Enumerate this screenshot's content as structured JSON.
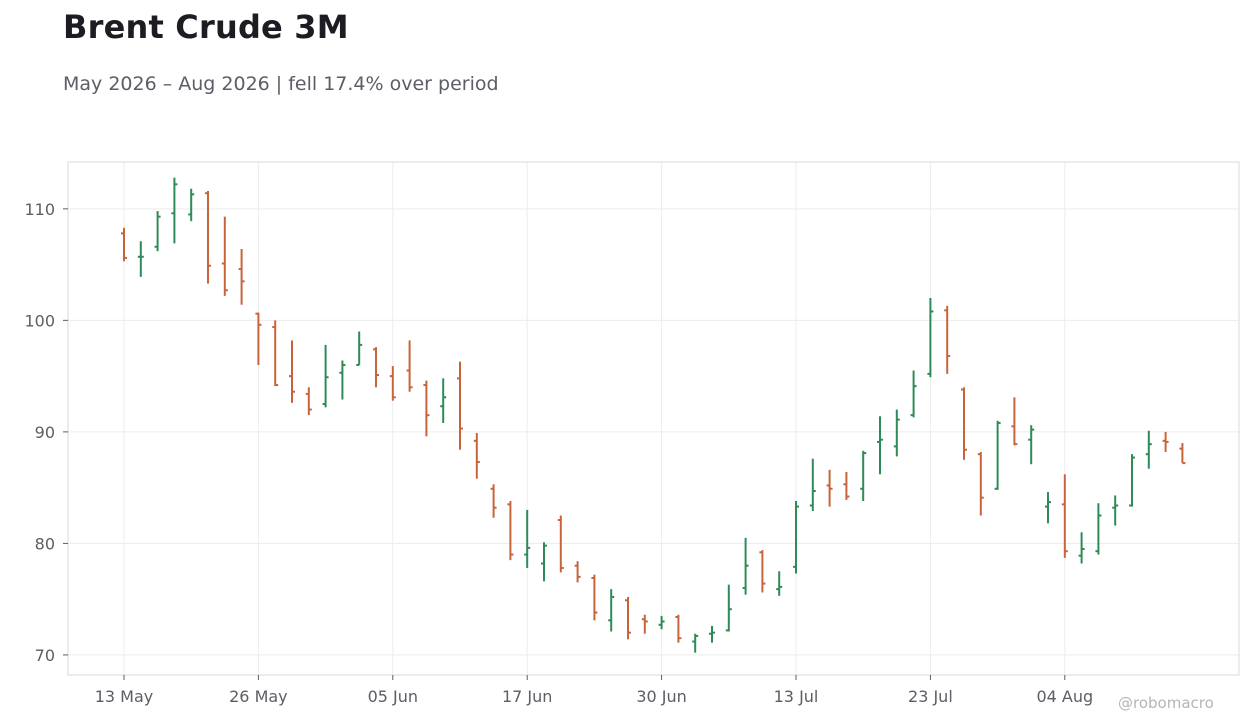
{
  "title": "Brent Crude 3M",
  "subtitle": "May 2026 – Aug 2026 | fell 17.4% over period",
  "watermark": "@robomacro",
  "colors": {
    "up": "#2e8b57",
    "down": "#c8643c",
    "grid": "#ececec",
    "frame": "#d9d9d9",
    "text": "#5d5d66"
  },
  "chart_data": {
    "type": "ohlc",
    "title": "Brent Crude 3M",
    "subtitle": "May 2026 – Aug 2026 | fell 17.4% over period",
    "xlabel": "",
    "ylabel": "",
    "ylim": [
      68.2,
      114.2
    ],
    "yticks": [
      70,
      80,
      90,
      100,
      110
    ],
    "xticks": [
      "13 May",
      "26 May",
      "05 Jun",
      "17 Jun",
      "30 Jun",
      "13 Jul",
      "23 Jul",
      "04 Aug"
    ],
    "grid": true,
    "bars": [
      {
        "date": "13 May",
        "o": 107.8,
        "h": 108.3,
        "l": 105.3,
        "c": 105.6
      },
      {
        "date": "14 May",
        "o": 105.7,
        "h": 107.1,
        "l": 103.9,
        "c": 105.7
      },
      {
        "date": "15 May",
        "o": 106.6,
        "h": 109.8,
        "l": 106.2,
        "c": 109.3
      },
      {
        "date": "16 May",
        "o": 109.6,
        "h": 112.8,
        "l": 106.9,
        "c": 112.2
      },
      {
        "date": "17 May",
        "o": 109.5,
        "h": 111.8,
        "l": 108.9,
        "c": 111.3
      },
      {
        "date": "18 May",
        "o": 111.4,
        "h": 111.6,
        "l": 103.3,
        "c": 104.9
      },
      {
        "date": "19 May",
        "o": 105.1,
        "h": 109.3,
        "l": 102.2,
        "c": 102.7
      },
      {
        "date": "20 May",
        "o": 104.6,
        "h": 106.4,
        "l": 101.4,
        "c": 103.5
      },
      {
        "date": "21 May",
        "o": 100.6,
        "h": 100.7,
        "l": 96.0,
        "c": 99.6
      },
      {
        "date": "22 May",
        "o": 99.4,
        "h": 100.0,
        "l": 94.1,
        "c": 94.2
      },
      {
        "date": "23 May",
        "o": 95.0,
        "h": 98.2,
        "l": 92.6,
        "c": 93.6
      },
      {
        "date": "24 May",
        "o": 93.4,
        "h": 94.0,
        "l": 91.5,
        "c": 92.0
      },
      {
        "date": "25 May",
        "o": 92.5,
        "h": 97.8,
        "l": 92.2,
        "c": 94.9
      },
      {
        "date": "26 May",
        "o": 95.3,
        "h": 96.4,
        "l": 92.9,
        "c": 96.0
      },
      {
        "date": "27 May",
        "o": 96.0,
        "h": 99.0,
        "l": 96.0,
        "c": 97.8
      },
      {
        "date": "28 May",
        "o": 97.4,
        "h": 97.6,
        "l": 94.0,
        "c": 95.1
      },
      {
        "date": "29 May",
        "o": 95.0,
        "h": 95.9,
        "l": 92.8,
        "c": 93.1
      },
      {
        "date": "30 May",
        "o": 95.5,
        "h": 98.2,
        "l": 93.6,
        "c": 94.0
      },
      {
        "date": "31 May",
        "o": 94.2,
        "h": 94.6,
        "l": 89.6,
        "c": 91.5
      },
      {
        "date": "01 Jun",
        "o": 92.3,
        "h": 94.8,
        "l": 90.8,
        "c": 93.1
      },
      {
        "date": "02 Jun",
        "o": 94.8,
        "h": 96.3,
        "l": 88.4,
        "c": 90.3
      },
      {
        "date": "03 Jun",
        "o": 89.2,
        "h": 89.9,
        "l": 85.8,
        "c": 87.3
      },
      {
        "date": "04 Jun",
        "o": 84.9,
        "h": 85.3,
        "l": 82.3,
        "c": 83.2
      },
      {
        "date": "05 Jun",
        "o": 83.5,
        "h": 83.8,
        "l": 78.5,
        "c": 79.0
      },
      {
        "date": "06 Jun",
        "o": 79.0,
        "h": 83.0,
        "l": 77.8,
        "c": 79.6
      },
      {
        "date": "07 Jun",
        "o": 78.2,
        "h": 80.1,
        "l": 76.6,
        "c": 79.8
      },
      {
        "date": "08 Jun",
        "o": 82.1,
        "h": 82.5,
        "l": 77.4,
        "c": 77.8
      },
      {
        "date": "09 Jun",
        "o": 78.0,
        "h": 78.4,
        "l": 76.5,
        "c": 77.0
      },
      {
        "date": "10 Jun",
        "o": 76.9,
        "h": 77.2,
        "l": 73.1,
        "c": 73.8
      },
      {
        "date": "11 Jun",
        "o": 73.1,
        "h": 75.9,
        "l": 72.1,
        "c": 75.2
      },
      {
        "date": "12 Jun",
        "o": 74.9,
        "h": 75.2,
        "l": 71.4,
        "c": 72.0
      },
      {
        "date": "13 Jun",
        "o": 73.2,
        "h": 73.6,
        "l": 71.9,
        "c": 73.0
      },
      {
        "date": "14 Jun",
        "o": 72.7,
        "h": 73.5,
        "l": 72.3,
        "c": 73.0
      },
      {
        "date": "15 Jun",
        "o": 73.4,
        "h": 73.6,
        "l": 71.1,
        "c": 71.5
      },
      {
        "date": "16 Jun",
        "o": 71.2,
        "h": 71.9,
        "l": 70.2,
        "c": 71.7
      },
      {
        "date": "17 Jun",
        "o": 71.9,
        "h": 72.6,
        "l": 71.1,
        "c": 72.0
      },
      {
        "date": "18 Jun",
        "o": 72.2,
        "h": 76.3,
        "l": 72.1,
        "c": 74.1
      },
      {
        "date": "19 Jun",
        "o": 76.0,
        "h": 80.5,
        "l": 75.4,
        "c": 78.0
      },
      {
        "date": "20 Jun",
        "o": 79.2,
        "h": 79.4,
        "l": 75.6,
        "c": 76.4
      },
      {
        "date": "21 Jun",
        "o": 75.9,
        "h": 77.5,
        "l": 75.3,
        "c": 76.1
      },
      {
        "date": "22 Jun",
        "o": 77.9,
        "h": 83.8,
        "l": 77.3,
        "c": 83.3
      },
      {
        "date": "23 Jun",
        "o": 83.4,
        "h": 87.6,
        "l": 82.9,
        "c": 84.7
      },
      {
        "date": "24 Jun",
        "o": 85.2,
        "h": 86.6,
        "l": 83.3,
        "c": 84.9
      },
      {
        "date": "25 Jun",
        "o": 85.3,
        "h": 86.4,
        "l": 83.9,
        "c": 84.2
      },
      {
        "date": "26 Jun",
        "o": 84.9,
        "h": 88.3,
        "l": 83.8,
        "c": 88.1
      },
      {
        "date": "27 Jun",
        "o": 89.1,
        "h": 91.4,
        "l": 86.2,
        "c": 89.3
      },
      {
        "date": "28 Jun",
        "o": 88.7,
        "h": 92.0,
        "l": 87.8,
        "c": 91.1
      },
      {
        "date": "29 Jun",
        "o": 91.5,
        "h": 95.5,
        "l": 91.3,
        "c": 94.1
      },
      {
        "date": "30 Jun",
        "o": 95.2,
        "h": 102.0,
        "l": 94.9,
        "c": 100.8
      },
      {
        "date": "01 Jul",
        "o": 100.9,
        "h": 101.3,
        "l": 95.2,
        "c": 96.8
      },
      {
        "date": "02 Jul",
        "o": 93.8,
        "h": 94.0,
        "l": 87.5,
        "c": 88.4
      },
      {
        "date": "03 Jul",
        "o": 88.0,
        "h": 88.2,
        "l": 82.5,
        "c": 84.1
      },
      {
        "date": "04 Jul",
        "o": 84.9,
        "h": 91.0,
        "l": 84.8,
        "c": 90.8
      },
      {
        "date": "05 Jul",
        "o": 90.5,
        "h": 93.1,
        "l": 88.8,
        "c": 88.9
      },
      {
        "date": "06 Jul",
        "o": 89.3,
        "h": 90.6,
        "l": 87.1,
        "c": 90.2
      },
      {
        "date": "07 Jul",
        "o": 83.3,
        "h": 84.6,
        "l": 81.8,
        "c": 83.7
      },
      {
        "date": "08 Jul",
        "o": 83.5,
        "h": 86.2,
        "l": 78.7,
        "c": 79.3
      },
      {
        "date": "09 Jul",
        "o": 78.9,
        "h": 81.0,
        "l": 78.2,
        "c": 79.5
      },
      {
        "date": "10 Jul",
        "o": 79.3,
        "h": 83.6,
        "l": 79.0,
        "c": 82.5
      },
      {
        "date": "11 Jul",
        "o": 83.2,
        "h": 84.3,
        "l": 81.6,
        "c": 83.4
      },
      {
        "date": "12 Jul",
        "o": 83.4,
        "h": 88.0,
        "l": 83.3,
        "c": 87.7
      },
      {
        "date": "13 Jul",
        "o": 88.0,
        "h": 90.1,
        "l": 86.7,
        "c": 88.9
      },
      {
        "date": "14 Jul",
        "o": 89.2,
        "h": 90.0,
        "l": 88.2,
        "c": 89.1
      },
      {
        "date": "15 Jul",
        "o": 88.5,
        "h": 89.0,
        "l": 87.2,
        "c": 87.2
      }
    ]
  }
}
